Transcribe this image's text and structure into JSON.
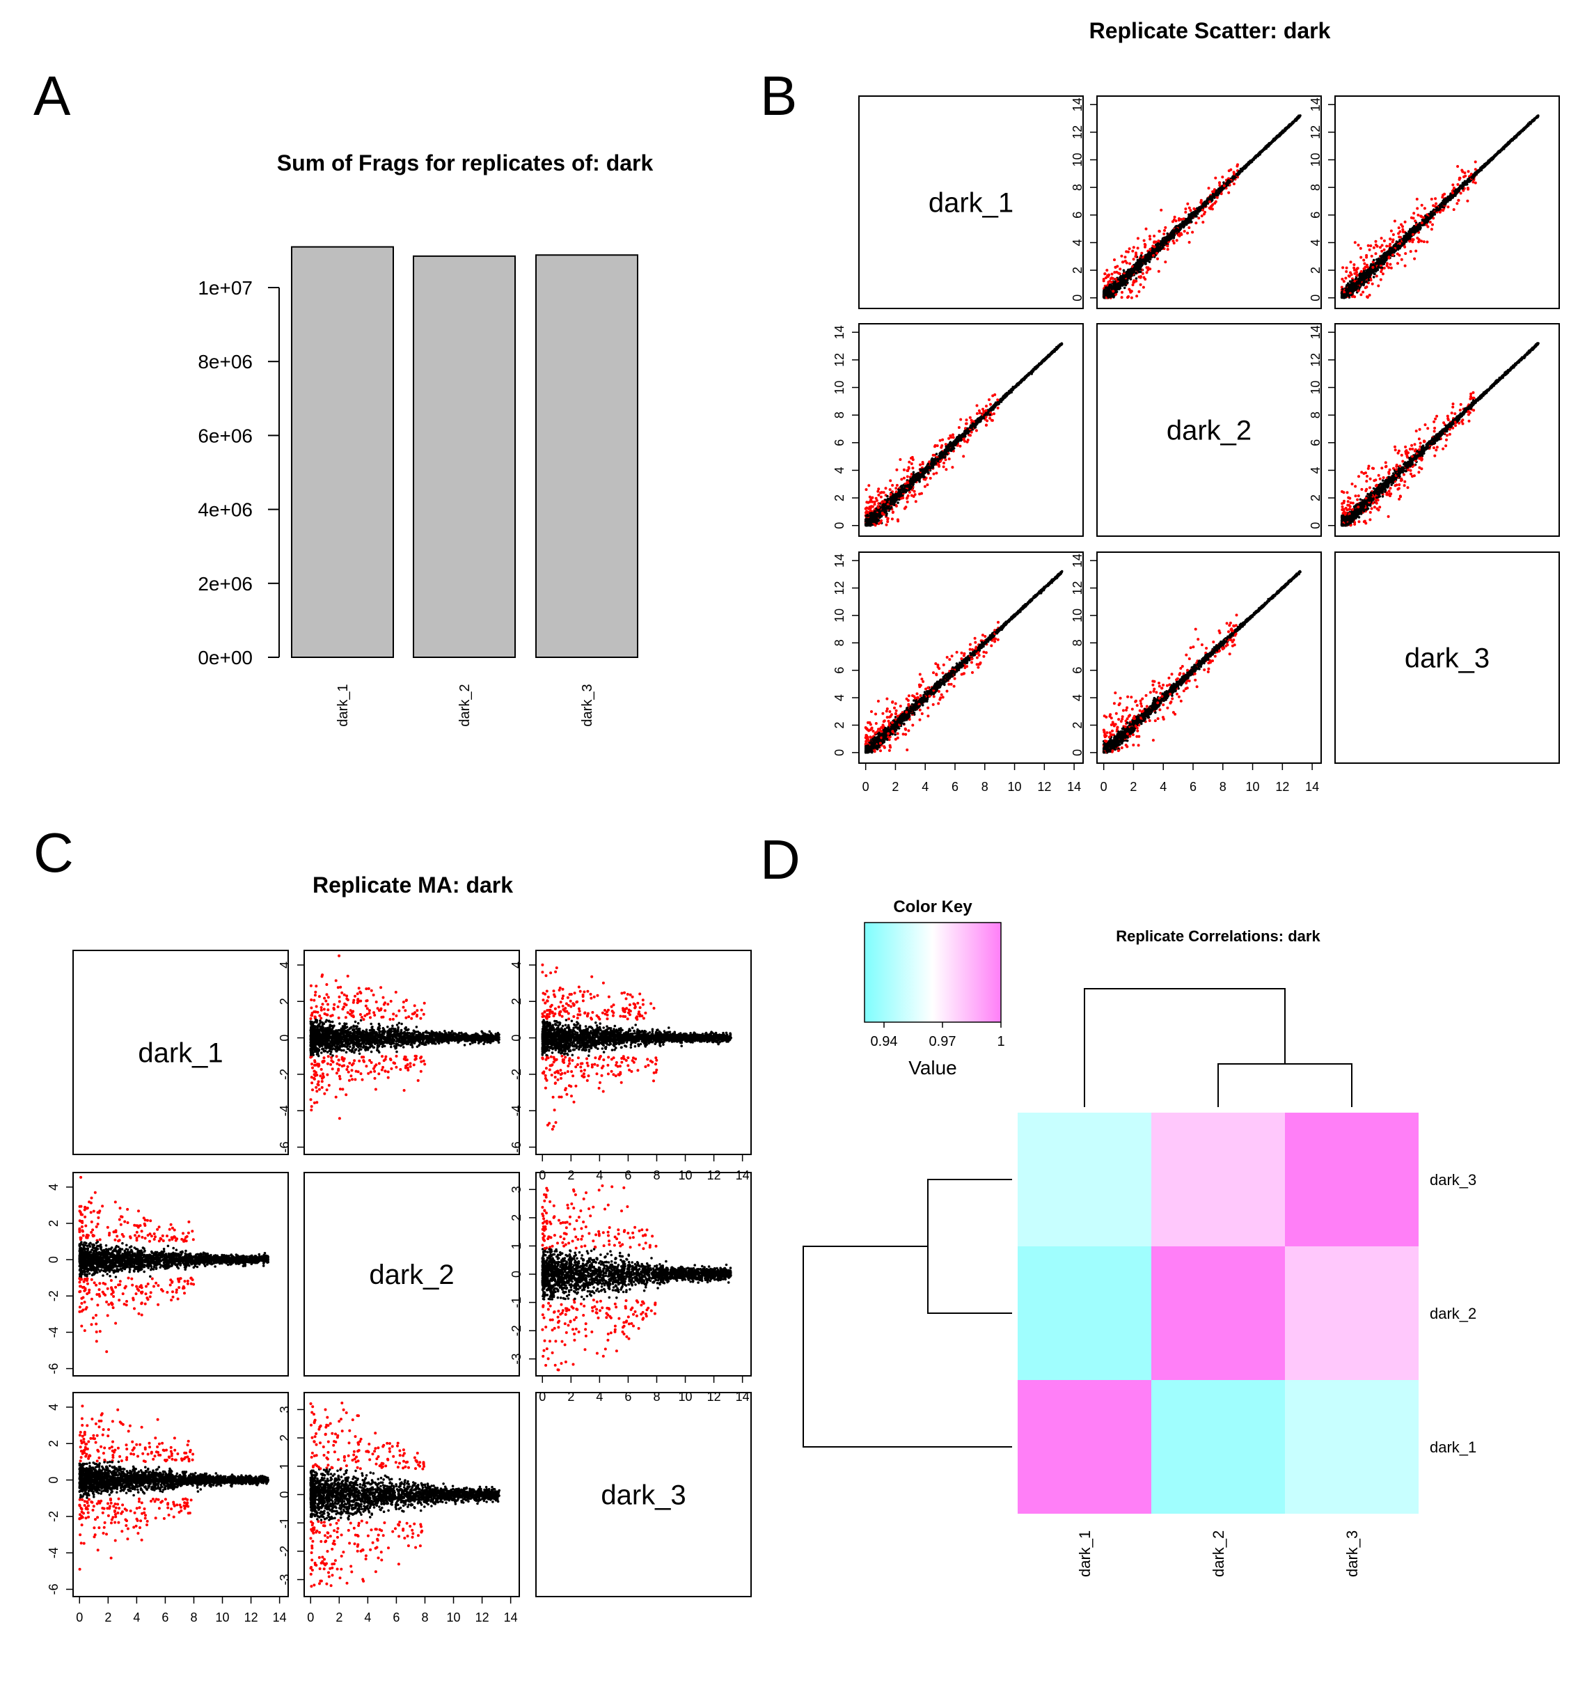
{
  "panels": {
    "A": {
      "letter": "A",
      "chart_data": {
        "type": "bar",
        "title": "Sum of Frags for replicates of: dark",
        "categories": [
          "dark_1",
          "dark_2",
          "dark_3"
        ],
        "values": [
          11100000,
          10850000,
          10880000
        ],
        "ylim": [
          0,
          11200000
        ],
        "yticks": [
          "0e+00",
          "2e+06",
          "4e+06",
          "6e+06",
          "8e+06",
          "1e+07"
        ],
        "ytick_values": [
          0,
          2000000,
          4000000,
          6000000,
          8000000,
          10000000
        ],
        "bar_color": "#bebebe"
      }
    },
    "B": {
      "letter": "B",
      "chart_data": {
        "type": "scatter",
        "title": "Replicate Scatter: dark",
        "samples": [
          "dark_1",
          "dark_2",
          "dark_3"
        ],
        "xlim": [
          0,
          14
        ],
        "ylim": [
          0,
          14
        ],
        "ticks": [
          0,
          2,
          4,
          6,
          8,
          10,
          12,
          14
        ],
        "point_colors": {
          "significant": "#ff0000",
          "main": "#000000"
        }
      }
    },
    "C": {
      "letter": "C",
      "chart_data": {
        "type": "scatter",
        "title": "Replicate MA: dark",
        "samples": [
          "dark_1",
          "dark_2",
          "dark_3"
        ],
        "xlim": [
          0,
          14
        ],
        "ticks_x": [
          0,
          2,
          4,
          6,
          8,
          10,
          12,
          14
        ],
        "ticks_y_wide": [
          -6,
          -4,
          -2,
          0,
          2,
          4
        ],
        "ticks_y_narrow": [
          -3,
          -2,
          -1,
          0,
          1,
          2,
          3
        ],
        "point_colors": {
          "significant": "#ff0000",
          "main": "#000000"
        }
      }
    },
    "D": {
      "letter": "D",
      "chart_data": {
        "type": "heatmap",
        "title": "Replicate Correlations: dark",
        "rows": [
          "dark_3",
          "dark_2",
          "dark_1"
        ],
        "cols": [
          "dark_1",
          "dark_2",
          "dark_3"
        ],
        "values": [
          [
            0.95,
            0.98,
            1.0
          ],
          [
            0.939,
            1.0,
            0.98
          ],
          [
            1.0,
            0.939,
            0.95
          ]
        ],
        "color_key": {
          "title": "Color Key",
          "xlabel": "Value",
          "range": [
            0.93,
            1.0
          ],
          "ticks": [
            "0.94",
            "0.97",
            "1"
          ],
          "tick_values": [
            0.94,
            0.97,
            1.0
          ],
          "colors": [
            "#7ffefe",
            "#ffffff",
            "#ff7ff7"
          ]
        }
      }
    }
  }
}
